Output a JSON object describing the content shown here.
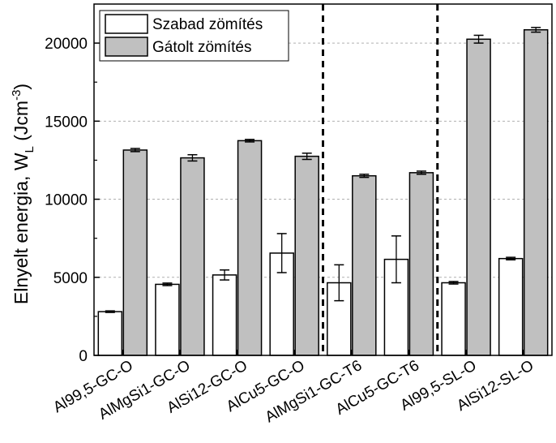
{
  "chart_data": {
    "type": "bar",
    "title": "",
    "xlabel": "",
    "ylabel": "Elnyelt energia, W",
    "ylabel_sub": "L",
    "ylabel_unit_open": " (Jcm",
    "ylabel_unit_sup": "-3",
    "ylabel_unit_close": ")",
    "ylim": [
      0,
      22500
    ],
    "yticks": [
      0,
      5000,
      10000,
      15000,
      20000
    ],
    "grid": true,
    "legend_position": "top-left",
    "categories": [
      "Al99,5-GC-O",
      "AlMgSi1-GC-O",
      "AlSi12-GC-O",
      "AlCu5-GC-O",
      "AlMgSi1-GC-T6",
      "AlCu5-GC-T6",
      "Al99,5-SL-O",
      "AlSi12-SL-O"
    ],
    "group_separators_after": [
      4,
      6
    ],
    "series": [
      {
        "name": "Szabad zömítés",
        "color": "#ffffff",
        "values": [
          2800,
          4550,
          5150,
          6550,
          4650,
          6150,
          4650,
          6200
        ],
        "errors": [
          50,
          80,
          320,
          1250,
          1150,
          1500,
          80,
          80
        ]
      },
      {
        "name": "Gátolt zömítés",
        "color": "#c0c0c0",
        "values": [
          13150,
          12650,
          13750,
          12750,
          11500,
          11700,
          20250,
          20850
        ],
        "errors": [
          100,
          200,
          80,
          200,
          100,
          100,
          250,
          150
        ]
      }
    ]
  }
}
